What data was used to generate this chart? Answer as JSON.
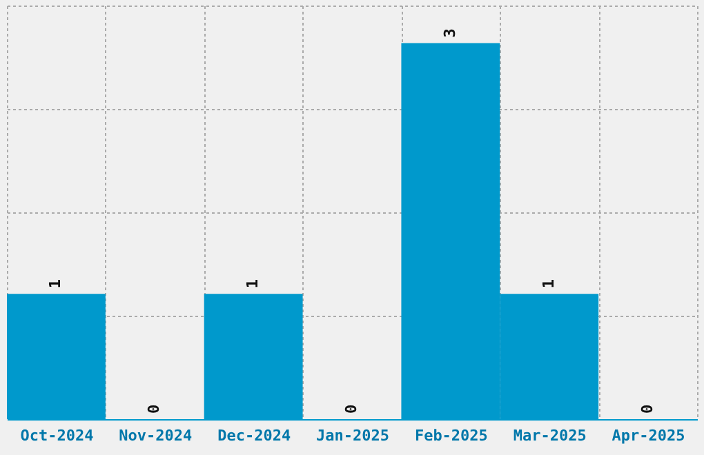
{
  "chart_data": {
    "type": "bar",
    "categories": [
      "Oct-2024",
      "Nov-2024",
      "Dec-2024",
      "Jan-2025",
      "Feb-2025",
      "Mar-2025",
      "Apr-2025"
    ],
    "values": [
      1,
      0,
      1,
      0,
      3,
      1,
      0
    ],
    "color": "#0099cc",
    "ylim": [
      0,
      3.3
    ],
    "yticks": [
      {
        "value": 0.825,
        "label": null
      },
      {
        "value": 1.65,
        "label": null
      },
      {
        "value": 2.475,
        "label": null
      },
      {
        "value": 3.3,
        "label": null
      }
    ],
    "grid": true,
    "data_labels": true,
    "tick_labels": "x"
  }
}
